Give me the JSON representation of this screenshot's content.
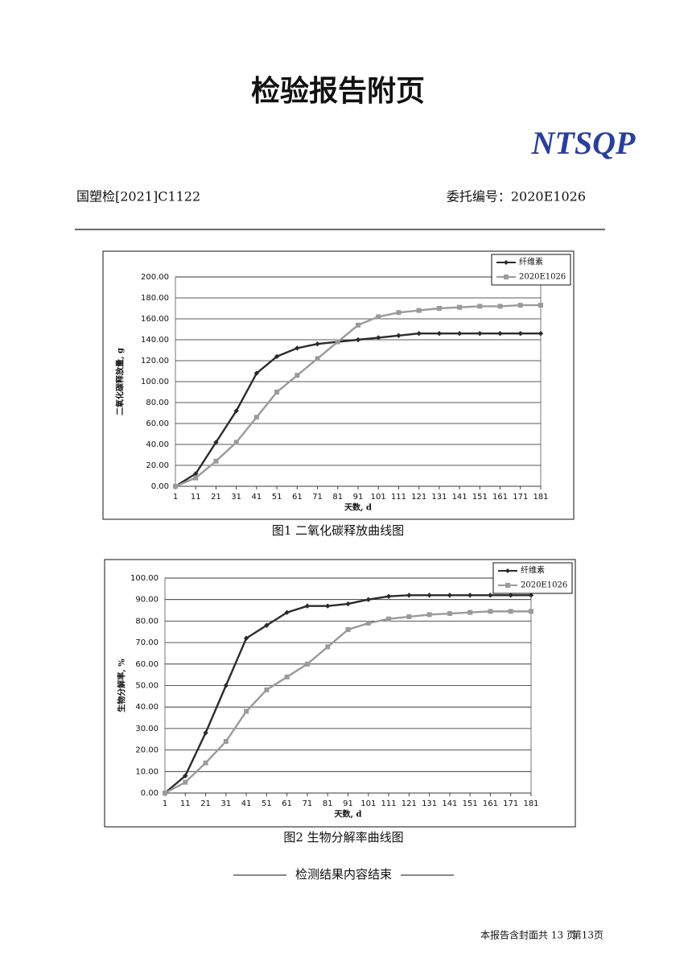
{
  "header": {
    "title": "检验报告附页",
    "logo": "NTSQP",
    "report_no": "国塑检[2021]C1122",
    "commission_no": "委托编号：2020E1026"
  },
  "end_note": "检测结果内容结束",
  "footer": {
    "pages": "本报告含封面共 13 页",
    "page": "第13页"
  },
  "chart_data": [
    {
      "type": "line",
      "title": "图1  二氧化碳释放曲线图",
      "xlabel": "天数, d",
      "ylabel": "二氧化碳释放量, g",
      "x": [
        1,
        11,
        21,
        31,
        41,
        51,
        61,
        71,
        81,
        91,
        101,
        111,
        121,
        131,
        141,
        151,
        161,
        171,
        181
      ],
      "xlim": [
        1,
        181
      ],
      "xticks": [
        1,
        11,
        21,
        31,
        41,
        51,
        61,
        71,
        81,
        91,
        101,
        111,
        121,
        131,
        141,
        151,
        161,
        171,
        181
      ],
      "ylim": [
        0,
        200
      ],
      "yticks": [
        {
          "value": 0,
          "label": "0.00"
        },
        {
          "value": 20,
          "label": "20.00"
        },
        {
          "value": 40,
          "label": "40.00"
        },
        {
          "value": 60,
          "label": "60.00"
        },
        {
          "value": 80,
          "label": "80.00"
        },
        {
          "value": 100,
          "label": "100.00"
        },
        {
          "value": 120,
          "label": "120.00"
        },
        {
          "value": 140,
          "label": "140.00"
        },
        {
          "value": 160,
          "label": "160.00"
        },
        {
          "value": 180,
          "label": "180.00"
        },
        {
          "value": 200,
          "label": "200.00"
        }
      ],
      "grid": true,
      "legend": "top-right",
      "series": [
        {
          "name": "纤维素",
          "color": "#2b2b2b",
          "marker": "diamond",
          "values": [
            0,
            12,
            42,
            72,
            108,
            124,
            132,
            136,
            138,
            140,
            142,
            144,
            146,
            146,
            146,
            146,
            146,
            146,
            146
          ]
        },
        {
          "name": "2020E1026",
          "color": "#9a9a9a",
          "marker": "square",
          "values": [
            0,
            8,
            24,
            42,
            66,
            90,
            106,
            122,
            138,
            154,
            162,
            166,
            168,
            170,
            171,
            172,
            172,
            173,
            173
          ]
        }
      ]
    },
    {
      "type": "line",
      "title": "图2  生物分解率曲线图",
      "xlabel": "天数, d",
      "ylabel": "生物分解率, %",
      "x": [
        1,
        11,
        21,
        31,
        41,
        51,
        61,
        71,
        81,
        91,
        101,
        111,
        121,
        131,
        141,
        151,
        161,
        171,
        181
      ],
      "xlim": [
        1,
        181
      ],
      "xticks": [
        1,
        11,
        21,
        31,
        41,
        51,
        61,
        71,
        81,
        91,
        101,
        111,
        121,
        131,
        141,
        151,
        161,
        171,
        181
      ],
      "ylim": [
        0,
        100
      ],
      "yticks": [
        {
          "value": 0,
          "label": "0.00"
        },
        {
          "value": 10,
          "label": "10.00"
        },
        {
          "value": 20,
          "label": "20.00"
        },
        {
          "value": 30,
          "label": "30.00"
        },
        {
          "value": 40,
          "label": "40.00"
        },
        {
          "value": 50,
          "label": "50.00"
        },
        {
          "value": 60,
          "label": "60.00"
        },
        {
          "value": 70,
          "label": "70.00"
        },
        {
          "value": 80,
          "label": "80.00"
        },
        {
          "value": 90,
          "label": "90.00"
        },
        {
          "value": 100,
          "label": "100.00"
        }
      ],
      "grid": true,
      "legend": "top-right",
      "series": [
        {
          "name": "纤维素",
          "color": "#2b2b2b",
          "marker": "diamond",
          "values": [
            0,
            8,
            28,
            50,
            72,
            78,
            84,
            87,
            87,
            88,
            90,
            91.5,
            92,
            92,
            92,
            92,
            92,
            92,
            92
          ]
        },
        {
          "name": "2020E1026",
          "color": "#9a9a9a",
          "marker": "square",
          "values": [
            0,
            5,
            14,
            24,
            38,
            48,
            54,
            60,
            68,
            76,
            79,
            81,
            82,
            83,
            83.5,
            84,
            84.5,
            84.5,
            84.5
          ]
        }
      ]
    }
  ]
}
